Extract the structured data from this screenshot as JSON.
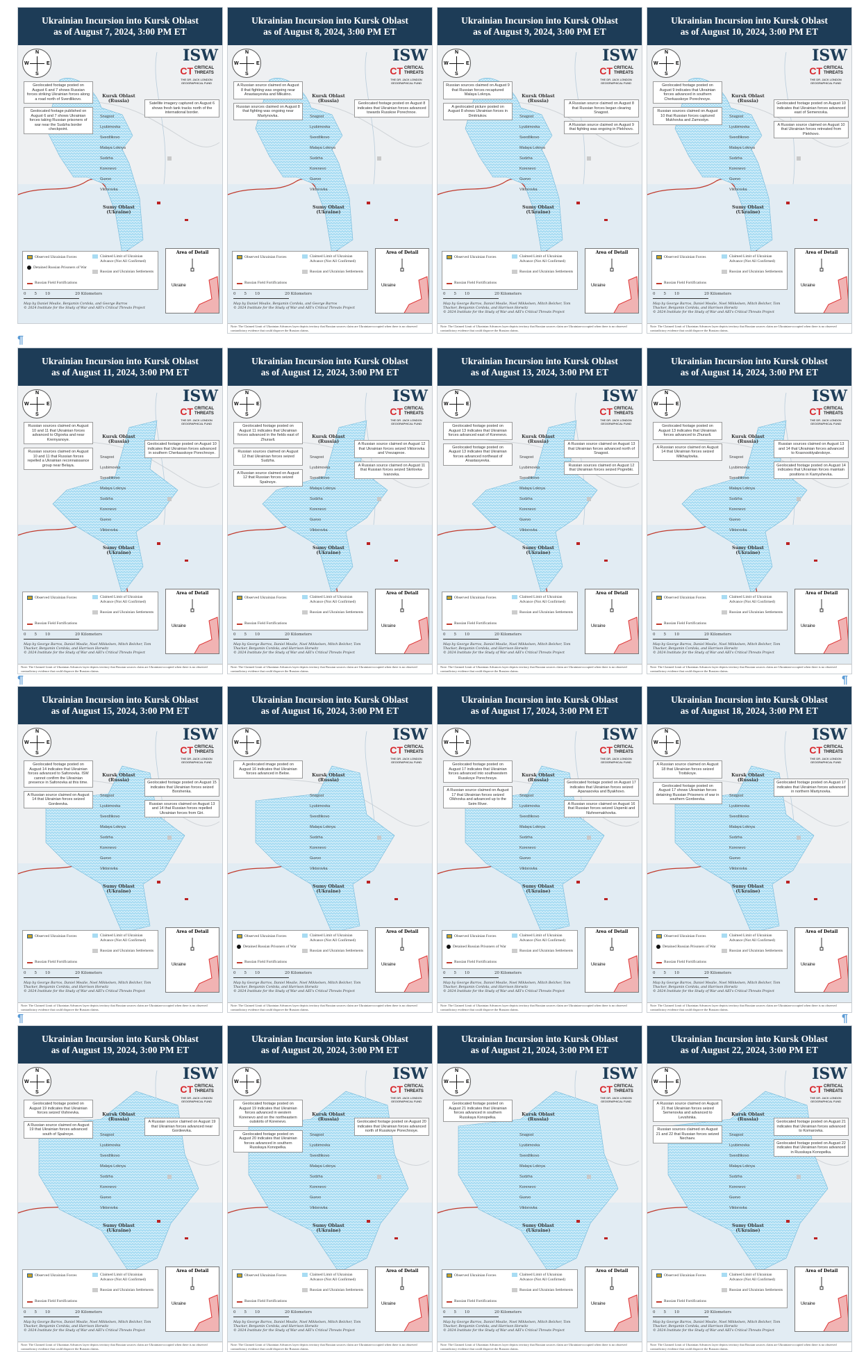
{
  "colors": {
    "header": "#1d3c57",
    "advance": "#9fd6f0",
    "border": "#c0392b",
    "fortifications": "#c0392b"
  },
  "logos": {
    "isw": "ISW",
    "isw_sub": "INSTITUTE FOR THE STUDY OF WAR",
    "and": "AND",
    "ct": "CT",
    "ct_text": "CRITICAL THREATS",
    "fund": "THE DR. JACK LONDON GEOGRAPHICAL FUND"
  },
  "compass": {
    "n": "N",
    "s": "S",
    "e": "E",
    "w": "W"
  },
  "pilcrow": "¶",
  "common": {
    "kursk": "Kursk Oblast (Russia)",
    "sumy": "Sumy Oblast (Ukraine)",
    "area_of_detail": "Area of Detail",
    "inset_ukraine": "Ukraine",
    "scale": [
      "0",
      "5",
      "10",
      "20 Kilometers"
    ],
    "note": "Note: The Claimed Limit of Ukrainian Advances layer depicts territory that Russian sources claim are Ukrainian-occupied when there is no observed contradictory evidence that could disprove the Russian claims.",
    "legend": {
      "observed": "Observed Ukrainian Forces",
      "claimed": "Claimed Limit of Ukrainian Advance (Not All Confirmed)",
      "settlements": "Russian and Ukrainian Settlements",
      "fortifications": "Russian Field Fortifications",
      "pow": "Detained Russian Prisoners of War"
    },
    "credit_a": "Map by Daniel Mealie, Benjamin Cordola, and George Barros",
    "credit_b": "Map by George Barros, Daniel Mealie, Noel Mikkelsen, Mitch Belcher, Tom Thacker, Benjamin Cordola, and Harrison Horwitz",
    "copyright": "© 2024 Institute for the Study of War and AEI's Critical Threats Project"
  },
  "towns": [
    "Snagost",
    "Lyubimovka",
    "Sverdlikovo",
    "Malaya Loknya",
    "Sudzha",
    "Korenevo",
    "Guevo",
    "Viktorovka"
  ],
  "panels": [
    {
      "title1": "Ukrainian Incursion into Kursk Oblast",
      "title2": "as of August 7, 2024, 3:00 PM ET",
      "pow": true,
      "credit": "a",
      "note": false,
      "callouts": [
        "Geolocated footage posted on August 6 and 7 shows Russian forces striking Ukrainian forces along a road north of Sverdlikovo.",
        "Satellite imagery captured on August 6 shows fresh tank tracks north of the international border.",
        "Geolocated footage published on August 6 and 7 shows Ukrainian forces taking Russian prisoners of war near the Sudzha border checkpoint."
      ]
    },
    {
      "title1": "Ukrainian Incursion into Kursk Oblast",
      "title2": "as of August 8, 2024, 3:00 PM ET",
      "pow": false,
      "credit": "a",
      "note": true,
      "callouts": [
        "A Russian source claimed on August 8 that fighting was ongoing near Anastasyevka and Mikulino.",
        "Geolocated footage posted on August 8 indicates that Ukrainian forces advanced towards Russkoe Porechnoe.",
        "Russian sources claimed on August 8 that fighting was ongoing near Martynovka."
      ]
    },
    {
      "title1": "Ukrainian Incursion into Kursk Oblast",
      "title2": "as of August 9, 2024, 3:00 PM ET",
      "pow": false,
      "credit": "b",
      "note": true,
      "callouts": [
        "Russian sources claimed on August 9 that Russian forces recaptured Malaya Loknya.",
        "A Russian source claimed on August 8 that Russian forces began clearing Snagost.",
        "A geolocated picture posted on August 8 shows Ukrainian forces in Dmitriukov.",
        "A Russian source claimed on August 9 that fighting was ongoing in Plekhovo."
      ]
    },
    {
      "title1": "Ukrainian Incursion into Kursk Oblast",
      "title2": "as of August 10, 2024, 3:00 PM ET",
      "pow": false,
      "credit": "b",
      "note": true,
      "callouts": [
        "Geolocated footage posted on August 9 indicates that Ukrainian forces advanced in southern Cherkasskoye Porechnoye.",
        "Geolocated footage posted on August 10 indicates that Ukrainian forces advanced east of Semenovka.",
        "Russian sources claimed on August 10 that Russian forces captured Mukhovka and Zamostye.",
        "A Russian source claimed on August 10 that Ukrainian forces retreated from Plekhovo."
      ]
    },
    {
      "title1": "Ukrainian Incursion into Kursk Oblast",
      "title2": "as of August 11, 2024, 3:00 PM ET",
      "pow": false,
      "credit": "b",
      "note": true,
      "callouts": [
        "Russian sources claimed on August 10 and 11 that Ukrainian forces advanced to Olgovka and near Kremyanoye.",
        "Geolocated footage posted on August 10 indicates that Ukrainian forces advanced in southern Cherkasskoye Porechnoye.",
        "Russian sources claimed on August 10 and 11 that Russian forces repelled a Ukrainian reconnaissance group near Belaya."
      ]
    },
    {
      "title1": "Ukrainian Incursion into Kursk Oblast",
      "title2": "as of August 12, 2024, 3:00 PM ET",
      "pow": false,
      "credit": "b",
      "note": true,
      "callouts": [
        "Geolocated footage posted on August 11 indicates that Ukrainian forces advanced in the fields east of Zhuravli.",
        "A Russian source claimed on August 12 that Ukrainian forces seized Viktorovka and Vnezapnoe.",
        "Russian sources claimed on August 12 that Ukrainian forces seized Sudzha.",
        "A Russian source claimed on August 11 that Russian forces seized Skrilovka-Ivanovka.",
        "A Russian source claimed on August 12 that Russian forces seized Spalnoye."
      ]
    },
    {
      "title1": "Ukrainian Incursion into Kursk Oblast",
      "title2": "as of August 13, 2024, 3:00 PM ET",
      "pow": false,
      "credit": "b",
      "note": true,
      "callouts": [
        "Geolocated footage posted on August 13 indicates that Ukrainian forces advanced east of Korenevo.",
        "A Russian source claimed on August 13 that Ukrainian forces advanced north of Snagost.",
        "Geolocated footage posted on August 13 indicates that Ukrainian forces advanced northeast of Anastasyevka.",
        "Russian sources claimed on August 12 that Ukrainian forces seized Pogrebki."
      ]
    },
    {
      "title1": "Ukrainian Incursion into Kursk Oblast",
      "title2": "as of August 14, 2024, 3:00 PM ET",
      "pow": false,
      "credit": "b",
      "note": true,
      "callouts": [
        "Geolocated footage posted on August 13 indicates that Ukrainian forces advanced to Zhuravli.",
        "Russian sources claimed on August 13 and 14 that Ukrainian forces advanced to Krasnooktyabrskoye.",
        "A Russian source claimed on August 14 that Ukrainian forces seized Mikhaylovka.",
        "Geolocated footage posted on August 14 indicates that Ukrainian forces maintain positions in Kamyshevka."
      ]
    },
    {
      "title1": "Ukrainian Incursion into Kursk Oblast",
      "title2": "as of August 15, 2024, 3:00 PM ET",
      "pow": false,
      "credit": "b",
      "note": true,
      "callouts": [
        "Geolocated footage posted on August 14 indicates that Ukrainian forces advanced to Safonovka. ISW cannot confirm the Ukrainian presence in Safonovka at this time.",
        "Geolocated footage posted on August 15 indicates that Ukrainian forces seized Borshenka.",
        "A Russian source claimed on August 14 that Ukrainian forces seized Gordeevka.",
        "Russian sources claimed on August 13 and 14 that Russian forces repelled Ukrainian forces from Giri."
      ]
    },
    {
      "title1": "Ukrainian Incursion into Kursk Oblast",
      "title2": "as of August 16, 2024, 3:00 PM ET",
      "pow": true,
      "credit": "b",
      "note": true,
      "callouts": [
        "A geolocated image posted on August 16 indicates that Ukrainian forces advanced in Beloe."
      ]
    },
    {
      "title1": "Ukrainian Incursion into Kursk Oblast",
      "title2": "as of August 17, 2024, 3:00 PM ET",
      "pow": true,
      "credit": "b",
      "note": true,
      "callouts": [
        "Geolocated footage posted on August 17 indicates that Ukrainian forces advanced into southwestern Russkoye Porechnoye.",
        "Geolocated footage posted on August 17 indicates that Ukrainian forces seized Apanasovka and Byakhovo.",
        "A Russian source claimed on August 17 that Ukrainian forces seized Olkhovka and advanced up to the Seim River.",
        "A Russian source claimed on August 16 that Russian forces seized Uspenki and Nizhnemakhovka."
      ]
    },
    {
      "title1": "Ukrainian Incursion into Kursk Oblast",
      "title2": "as of August 18, 2024, 3:00 PM ET",
      "pow": true,
      "credit": "b",
      "note": true,
      "callouts": [
        "A Russian source claimed on August 18 that Ukrainian forces seized Troitskoye.",
        "Geolocated footage posted on August 17 indicates that Ukrainian forces advanced in northern Martynovka.",
        "Geolocated footage posted on August 17 shows Ukrainian forces detaining Russian Prisoners of war in southern Gordeevka."
      ]
    },
    {
      "title1": "Ukrainian Incursion into Kursk Oblast",
      "title2": "as of August 19, 2024, 3:00 PM ET",
      "pow": false,
      "credit": "b",
      "note": true,
      "callouts": [
        "Geolocated footage posted on August 19 indicates that Ukrainian forces seized Vishnevka.",
        "A Russian source claimed on August 19 that Ukrainian forces advanced near Gordeevka.",
        "A Russian source claimed on August 19 that Ukrainian forces advanced south of Spalnoye."
      ]
    },
    {
      "title1": "Ukrainian Incursion into Kursk Oblast",
      "title2": "as of August 20, 2024, 3:00 PM ET",
      "pow": false,
      "credit": "b",
      "note": true,
      "callouts": [
        "Geolocated footage posted on August 19 indicates that Ukrainian forces advanced in western Korenevo and on the northeastern outskirts of Korenevo.",
        "Geolocated footage posted on August 20 indicates that Ukrainian forces advanced north of Russkoye Porechnoye.",
        "Geolocated footage posted on August 20 indicates that Ukrainian forces advanced in southern Russkaya Konopelka."
      ]
    },
    {
      "title1": "Ukrainian Incursion into Kursk Oblast",
      "title2": "as of August 21, 2024, 3:00 PM ET",
      "pow": false,
      "credit": "b",
      "note": true,
      "callouts": [
        "Geolocated footage posted on August 21 indicates that Ukrainian forces advanced in southern Russkaya Konopelka."
      ]
    },
    {
      "title1": "Ukrainian Incursion into Kursk Oblast",
      "title2": "as of August 22, 2024, 3:00 PM ET",
      "pow": false,
      "credit": "b",
      "note": true,
      "callouts": [
        "A Russian source claimed on August 21 that Ukrainian forces seized Semenovka and advanced to Levshinka.",
        "Geolocated footage posted on August 21 indicates that Ukrainian forces advanced to Komarovka.",
        "Russian sources claimed on August 21 and 22 that Russian forces seized Nechaev.",
        "Geolocated footage posted on August 22 indicates that Ukrainian forces advanced in Russkaya Konopelka."
      ]
    }
  ]
}
